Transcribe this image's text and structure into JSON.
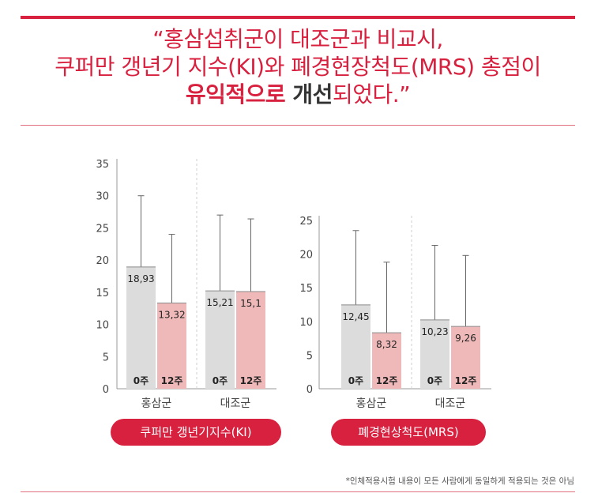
{
  "headline": {
    "line1": "“홍삼섭취군이 대조군과 비교시,",
    "line2": "쿠퍼만 갱년기 지수(KI)와 폐경현장척도(MRS) 총점이",
    "line3_a": "유익적으로 ",
    "line3_b": "개선",
    "line3_c": "되었다.”"
  },
  "footnote": "*인체적용시험 내용이 모든 사람에게 동일하게 적용되는 것은 아님",
  "colors": {
    "accent": "#d8203f",
    "week0": "#dcdcdc",
    "week12": "#f0b9b9"
  },
  "chart_data": [
    {
      "type": "bar",
      "title": "쿠퍼만 갱년기지수(KI)",
      "groups": [
        "홍삼군",
        "대조군"
      ],
      "categories": [
        "0주",
        "12주"
      ],
      "series": [
        {
          "group": "홍삼군",
          "values": [
            18.93,
            13.32
          ],
          "labels": [
            "18,93",
            "13,32"
          ],
          "error_upper": [
            30.0,
            24.0
          ]
        },
        {
          "group": "대조군",
          "values": [
            15.21,
            15.1
          ],
          "labels": [
            "15,21",
            "15,1"
          ],
          "error_upper": [
            27.0,
            26.4
          ]
        }
      ],
      "ylim": [
        0,
        35
      ],
      "yticks": [
        0,
        5,
        10,
        15,
        20,
        25,
        30,
        35
      ]
    },
    {
      "type": "bar",
      "title": "폐경현상척도(MRS)",
      "groups": [
        "홍삼군",
        "대조군"
      ],
      "categories": [
        "0주",
        "12주"
      ],
      "series": [
        {
          "group": "홍삼군",
          "values": [
            12.45,
            8.32
          ],
          "labels": [
            "12,45",
            "8,32"
          ],
          "error_upper": [
            23.5,
            18.8
          ]
        },
        {
          "group": "대조군",
          "values": [
            10.23,
            9.26
          ],
          "labels": [
            "10,23",
            "9,26"
          ],
          "error_upper": [
            21.3,
            19.8
          ]
        }
      ],
      "ylim": [
        0,
        25
      ],
      "yticks": [
        0,
        5,
        10,
        15,
        20,
        25
      ]
    }
  ]
}
